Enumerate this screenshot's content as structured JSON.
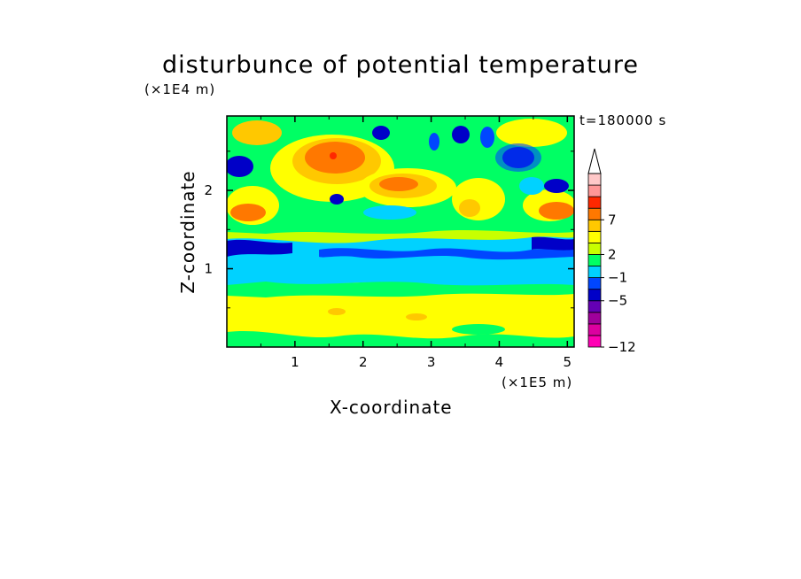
{
  "chart_data": {
    "type": "heatmap",
    "title": "disturbunce of potential temperature",
    "xlabel": "X-coordinate",
    "ylabel": "Z-coordinate",
    "x_unit": "(×1E5 m)",
    "z_unit": "(×1E4 m)",
    "time_label": "t=180000 s",
    "xlim": [
      0,
      5.1
    ],
    "ylim": [
      0,
      2.95
    ],
    "x_ticks": [
      "1",
      "2",
      "3",
      "4",
      "5"
    ],
    "x_tick_values": [
      1,
      2,
      3,
      4,
      5
    ],
    "y_ticks": [
      "1",
      "2"
    ],
    "y_tick_values": [
      1,
      2
    ],
    "colorbar": {
      "labels": [
        "7",
        "2",
        "−1",
        "−5",
        "−12"
      ],
      "label_levels": [
        7,
        2,
        -1,
        -5,
        -12
      ],
      "colors": [
        "#ff00b4",
        "#dc00a0",
        "#a0009b",
        "#6400b4",
        "#0000c8",
        "#0046ff",
        "#00d2ff",
        "#00ff64",
        "#c8ff00",
        "#ffff00",
        "#ffc800",
        "#ff7800",
        "#ff2800",
        "#ff9696",
        "#ffc8c8"
      ],
      "extend": "max"
    },
    "grid": false,
    "legend": "right colorbar"
  }
}
